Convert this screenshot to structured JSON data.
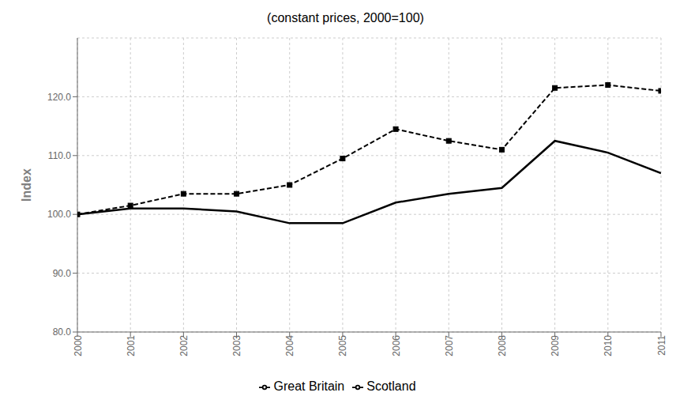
{
  "chart_data": {
    "type": "line",
    "title": "(constant prices, 2000=100)",
    "ylabel": "Index",
    "x": [
      2000,
      2001,
      2002,
      2003,
      2004,
      2005,
      2006,
      2007,
      2008,
      2009,
      2010,
      2011
    ],
    "series": [
      {
        "name": "Scotland",
        "color": "#000000",
        "line_style": "solid",
        "values": [
          100.0,
          101.0,
          101.0,
          100.5,
          98.5,
          98.5,
          102.0,
          103.5,
          104.5,
          112.5,
          110.5,
          107.0
        ]
      },
      {
        "name": "Great Britain",
        "color": "#000000",
        "line_style": "dashed",
        "marker": "square",
        "values": [
          100.0,
          101.5,
          103.5,
          103.5,
          105.0,
          109.5,
          114.5,
          112.5,
          111.0,
          121.5,
          122.0,
          121.0
        ]
      }
    ],
    "xlim": [
      2000,
      2011
    ],
    "xticks": [
      2000,
      2001,
      2002,
      2003,
      2004,
      2005,
      2006,
      2007,
      2008,
      2009,
      2010,
      2011
    ],
    "ylim": [
      80.0,
      130.0
    ],
    "yticks": [
      {
        "value": 80.0,
        "label": "80.0"
      },
      {
        "value": 90.0,
        "label": "90.0"
      },
      {
        "value": 100.0,
        "label": "100.0"
      },
      {
        "value": 110.0,
        "label": "110.0"
      },
      {
        "value": 120.0,
        "label": "120.0"
      }
    ],
    "grid": true,
    "legend": "bottom"
  }
}
